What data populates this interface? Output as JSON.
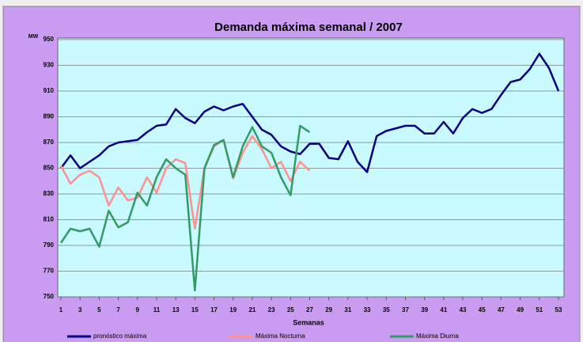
{
  "chart_data": {
    "type": "line",
    "title": "Demanda máxima semanal / 2007",
    "y_label": "MW",
    "x_label": "Semanas",
    "x": [
      1,
      2,
      3,
      4,
      5,
      6,
      7,
      8,
      9,
      10,
      11,
      12,
      13,
      14,
      15,
      16,
      17,
      18,
      19,
      20,
      21,
      22,
      23,
      24,
      25,
      26,
      27,
      28,
      29,
      30,
      31,
      32,
      33,
      34,
      35,
      36,
      37,
      38,
      39,
      40,
      41,
      42,
      43,
      44,
      45,
      46,
      47,
      48,
      49,
      50,
      51,
      52,
      53
    ],
    "xlim": [
      1,
      53
    ],
    "xticks": [
      1,
      3,
      5,
      7,
      9,
      11,
      13,
      15,
      17,
      19,
      21,
      23,
      25,
      27,
      29,
      31,
      33,
      35,
      37,
      39,
      41,
      43,
      45,
      47,
      49,
      51,
      53
    ],
    "ylim": [
      750,
      950
    ],
    "yticks": [
      750,
      770,
      790,
      810,
      830,
      850,
      870,
      890,
      910,
      930,
      950
    ],
    "grid": true,
    "legend": "bottom",
    "series": [
      {
        "name": "pronóstico máxima",
        "color": "#000080",
        "values": [
          850,
          860,
          850,
          855,
          860,
          867,
          870,
          871,
          872,
          878,
          883,
          884,
          896,
          889,
          885,
          894,
          898,
          895,
          898,
          900,
          890,
          880,
          876,
          867,
          863,
          861,
          869,
          869,
          858,
          857,
          871,
          855,
          847,
          875,
          879,
          881,
          883,
          883,
          877,
          877,
          886,
          877,
          889,
          896,
          893,
          896,
          907,
          917,
          919,
          927,
          939,
          928,
          910
        ]
      },
      {
        "name": "Máxima Nocturna",
        "color": "#ff9090",
        "values": [
          852,
          838,
          845,
          848,
          843,
          821,
          835,
          825,
          827,
          843,
          831,
          850,
          857,
          854,
          803,
          850,
          867,
          872,
          842,
          862,
          875,
          865,
          850,
          855,
          840,
          855,
          848,
          null,
          null,
          null,
          null,
          null,
          null,
          null,
          null,
          null,
          null,
          null,
          null,
          null,
          null,
          null,
          null,
          null,
          null,
          null,
          null,
          null,
          null,
          null,
          null,
          null,
          null
        ]
      },
      {
        "name": "Máxima Diurna",
        "color": "#339966",
        "values": [
          792,
          803,
          801,
          803,
          789,
          817,
          804,
          808,
          831,
          821,
          843,
          857,
          850,
          845,
          755,
          850,
          868,
          872,
          843,
          867,
          882,
          867,
          862,
          843,
          829,
          883,
          878,
          null,
          null,
          null,
          null,
          null,
          null,
          null,
          null,
          null,
          null,
          null,
          null,
          null,
          null,
          null,
          null,
          null,
          null,
          null,
          null,
          null,
          null,
          null,
          null,
          null,
          null
        ]
      }
    ]
  }
}
